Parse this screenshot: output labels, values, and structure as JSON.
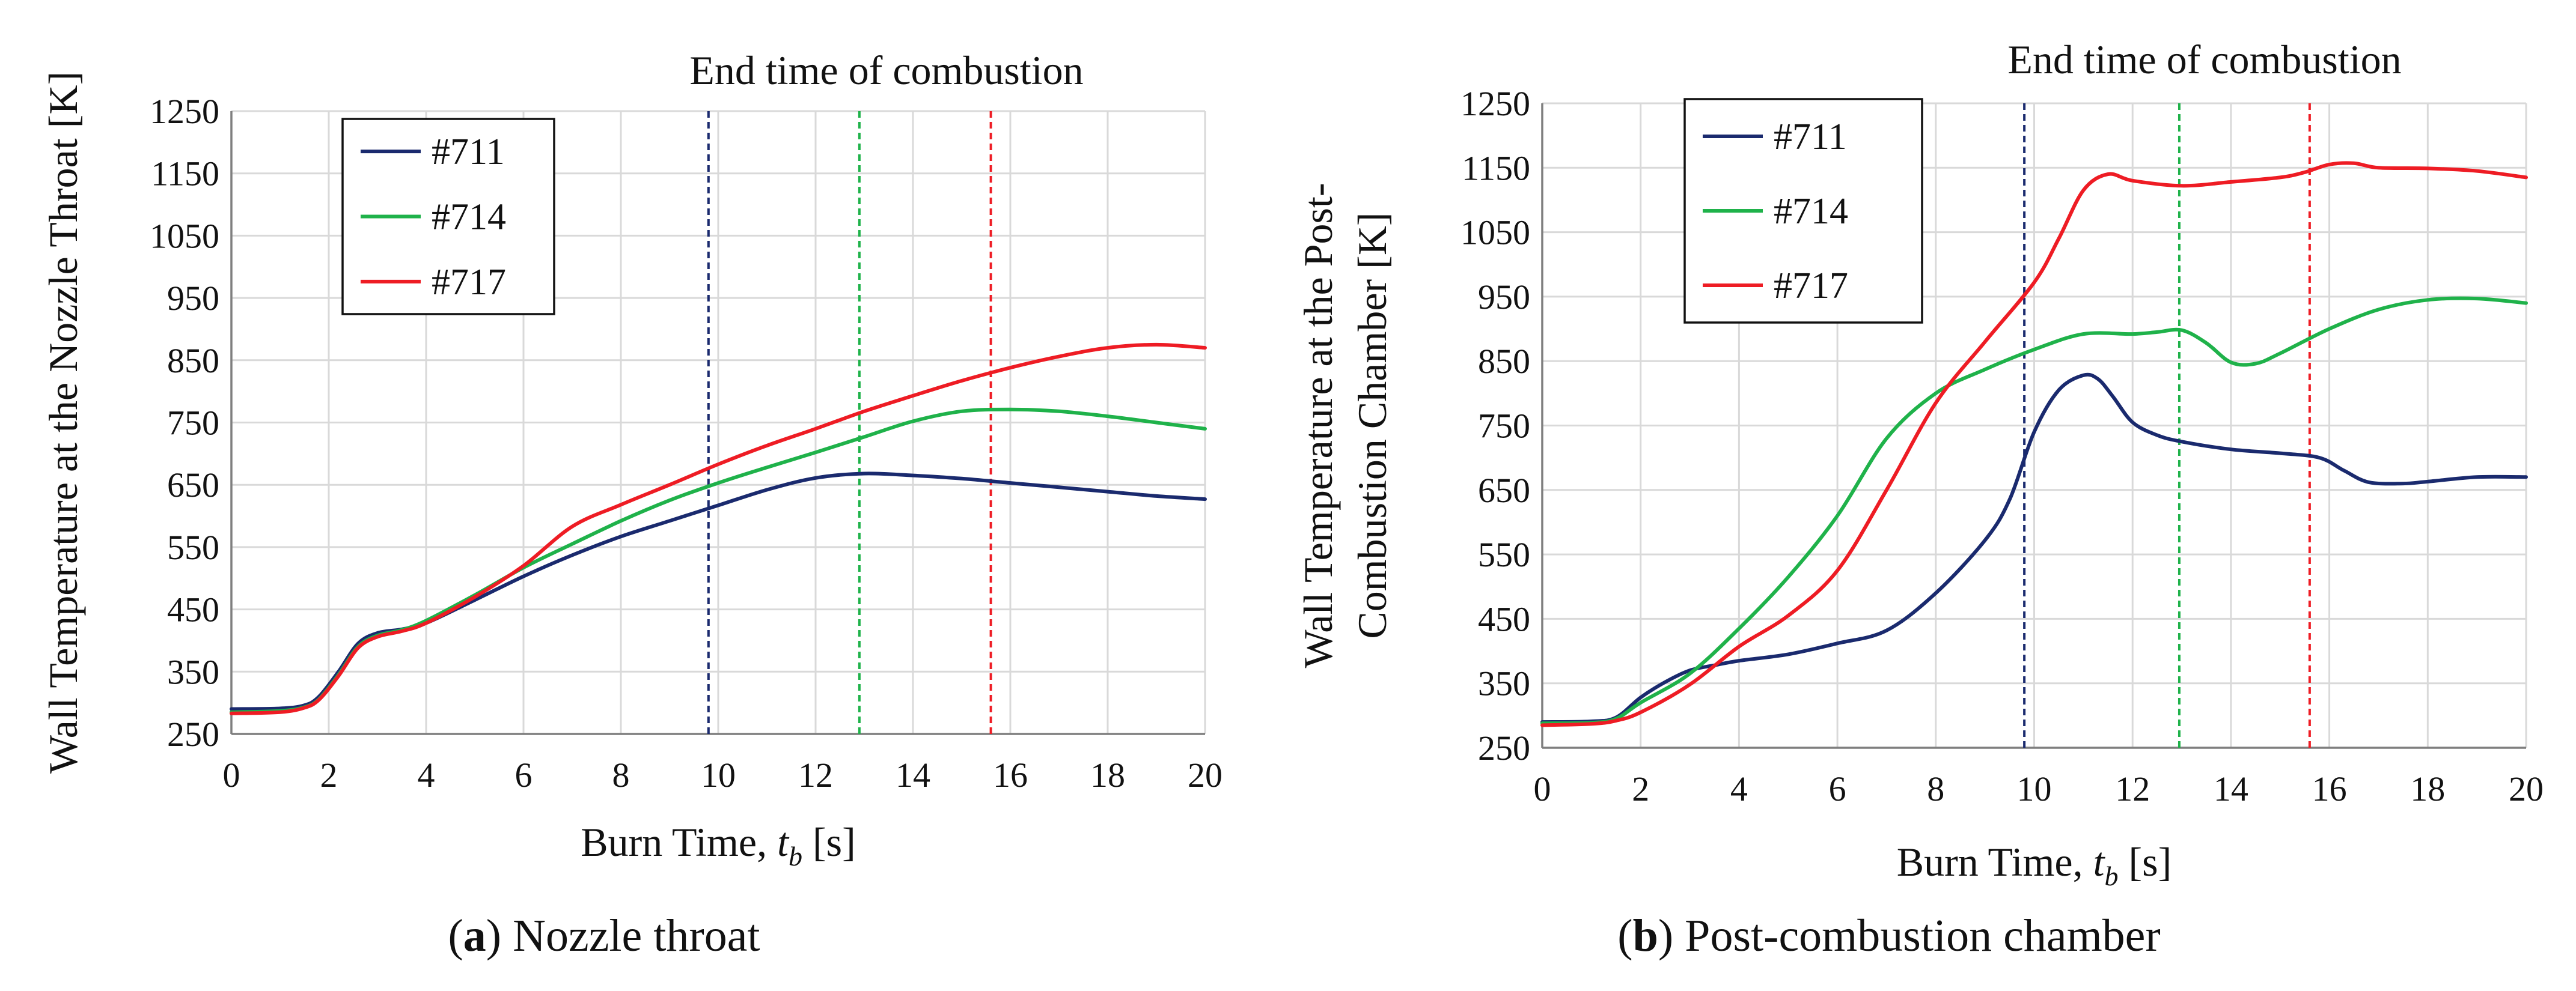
{
  "figure": {
    "colors": {
      "#711": "#1a2a6e",
      "#714": "#1fb24a",
      "#717": "#ee1c24",
      "grid": "#d9d9d9",
      "axis": "#7f7f7f"
    }
  },
  "chart_data": [
    {
      "type": "line",
      "panel_label": "a",
      "caption": "Nozzle throat",
      "xlabel": "Burn Time, t_b [s]",
      "xlabel_main": "Burn Time,",
      "xlabel_var": "t",
      "xlabel_sub": "b",
      "xlabel_unit": "[s]",
      "ylabel": "Wall Temperature at the Nozzle Throat [K]",
      "ylabel_lines": [
        "Wall Temperature at the Nozzle Throat [K]"
      ],
      "xlim": [
        0,
        20
      ],
      "ylim": [
        250,
        1250
      ],
      "xticks": [
        0,
        2,
        4,
        6,
        8,
        10,
        12,
        14,
        16,
        18,
        20
      ],
      "yticks": [
        250,
        350,
        450,
        550,
        650,
        750,
        850,
        950,
        1050,
        1150,
        1250
      ],
      "grid": true,
      "legend_position": "top-left",
      "annotation": "End time of combustion",
      "end_times": [
        {
          "series": "#711",
          "x": 9.8
        },
        {
          "series": "#714",
          "x": 12.9
        },
        {
          "series": "#717",
          "x": 15.6
        }
      ],
      "series": [
        {
          "name": "#711",
          "x": [
            0,
            1,
            1.5,
            1.8,
            2.2,
            2.6,
            3,
            3.5,
            4,
            5,
            6,
            7,
            8,
            9,
            10,
            11,
            12,
            13,
            14,
            15,
            16,
            17,
            18,
            19,
            20
          ],
          "y": [
            290,
            291,
            296,
            310,
            350,
            395,
            412,
            418,
            428,
            465,
            503,
            537,
            567,
            592,
            617,
            642,
            661,
            668,
            665,
            660,
            653,
            646,
            639,
            632,
            627
          ]
        },
        {
          "name": "#714",
          "x": [
            0,
            1,
            1.5,
            1.8,
            2.2,
            2.6,
            3,
            3.5,
            4,
            5,
            6,
            7,
            8,
            9,
            10,
            11,
            12,
            13,
            14,
            15,
            16,
            17,
            18,
            19,
            20
          ],
          "y": [
            285,
            287,
            293,
            306,
            345,
            390,
            408,
            417,
            432,
            473,
            517,
            555,
            592,
            625,
            653,
            678,
            702,
            727,
            752,
            768,
            771,
            768,
            760,
            750,
            740
          ]
        },
        {
          "name": "#717",
          "x": [
            0,
            1,
            1.5,
            1.8,
            2.2,
            2.6,
            3,
            3.5,
            4,
            5,
            6,
            7,
            8,
            9,
            10,
            11,
            12,
            13,
            14,
            15,
            16,
            17,
            18,
            19,
            20
          ],
          "y": [
            283,
            285,
            292,
            305,
            343,
            388,
            406,
            415,
            428,
            470,
            520,
            583,
            618,
            650,
            683,
            713,
            740,
            768,
            793,
            817,
            838,
            856,
            870,
            875,
            870
          ]
        }
      ]
    },
    {
      "type": "line",
      "panel_label": "b",
      "caption": "Post-combustion chamber",
      "xlabel": "Burn Time, t_b [s]",
      "xlabel_main": "Burn Time,",
      "xlabel_var": "t",
      "xlabel_sub": "b",
      "xlabel_unit": "[s]",
      "ylabel": "Wall Temperature at the Post-Combustion Chamber [K]",
      "ylabel_lines": [
        "Wall Temperature at the Post-",
        "Combustion Chamber [K]"
      ],
      "xlim": [
        0,
        20
      ],
      "ylim": [
        250,
        1250
      ],
      "xticks": [
        0,
        2,
        4,
        6,
        8,
        10,
        12,
        14,
        16,
        18,
        20
      ],
      "yticks": [
        250,
        350,
        450,
        550,
        650,
        750,
        850,
        950,
        1050,
        1150,
        1250
      ],
      "grid": true,
      "legend_position": "top-left",
      "annotation": "End time of combustion",
      "end_times": [
        {
          "series": "#711",
          "x": 9.8
        },
        {
          "series": "#714",
          "x": 12.95
        },
        {
          "series": "#717",
          "x": 15.6
        }
      ],
      "series": [
        {
          "name": "#711",
          "x": [
            0,
            1,
            1.5,
            2,
            2.5,
            3,
            3.5,
            4,
            5,
            6,
            7,
            8,
            9,
            9.5,
            10,
            10.5,
            11,
            11.3,
            11.6,
            12,
            12.5,
            13,
            14,
            15,
            15.8,
            16.3,
            16.8,
            17.5,
            18,
            19,
            20
          ],
          "y": [
            290,
            291,
            297,
            328,
            352,
            370,
            378,
            385,
            395,
            412,
            432,
            490,
            572,
            635,
            740,
            805,
            828,
            822,
            795,
            755,
            735,
            725,
            713,
            707,
            700,
            680,
            662,
            660,
            663,
            670,
            670
          ]
        },
        {
          "name": "#714",
          "x": [
            0,
            1,
            1.5,
            2,
            3,
            4,
            5,
            6,
            7,
            8,
            9,
            10,
            11,
            12,
            12.5,
            13,
            13.5,
            14,
            14.5,
            15,
            16,
            17,
            18,
            19,
            20
          ],
          "y": [
            288,
            289,
            295,
            320,
            365,
            435,
            515,
            610,
            730,
            800,
            837,
            868,
            892,
            892,
            895,
            898,
            878,
            848,
            846,
            862,
            900,
            930,
            945,
            947,
            940
          ]
        },
        {
          "name": "#717",
          "x": [
            0,
            1,
            1.5,
            2,
            3,
            4,
            5,
            6,
            7,
            8,
            9,
            10,
            10.5,
            11,
            11.5,
            12,
            13,
            14,
            15,
            15.5,
            16,
            16.5,
            17,
            18,
            19,
            20
          ],
          "y": [
            285,
            287,
            292,
            305,
            348,
            407,
            455,
            525,
            650,
            785,
            880,
            972,
            1040,
            1115,
            1140,
            1130,
            1122,
            1128,
            1135,
            1143,
            1155,
            1157,
            1150,
            1149,
            1145,
            1135
          ]
        }
      ]
    }
  ]
}
